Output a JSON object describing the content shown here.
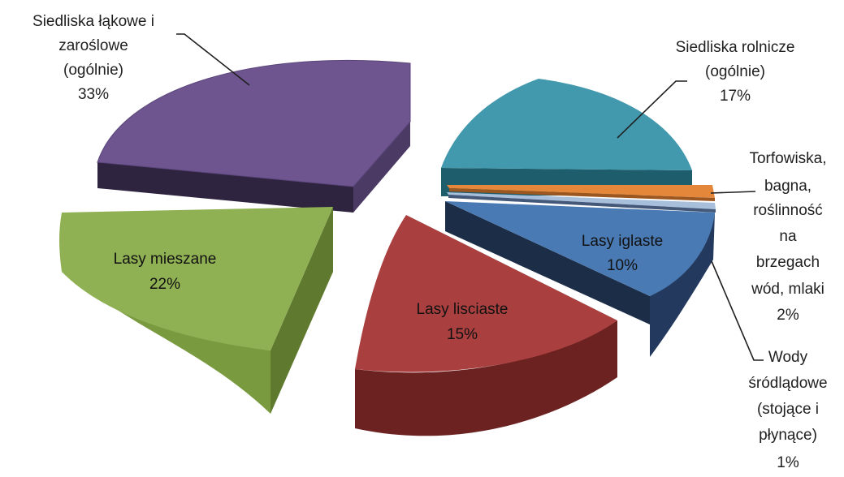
{
  "chart_data": {
    "type": "pie",
    "style": "3d-exploded",
    "slices": [
      {
        "key": "siedliska_lakowe",
        "lines": [
          "Siedliska łąkowe i",
          "zaroślowe",
          "(ogólnie)"
        ],
        "pct_text": "33%",
        "value": 33,
        "color": "#7b5e98"
      },
      {
        "key": "siedliska_rolnicze",
        "lines": [
          "Siedliska rolnicze",
          "(ogólnie)"
        ],
        "pct_text": "17%",
        "value": 17,
        "color": "#4298ad"
      },
      {
        "key": "torfowiska",
        "lines": [
          "Torfowiska,",
          "bagna,",
          "roślinność",
          "na",
          "brzegach",
          "wód, mlaki"
        ],
        "pct_text": "2%",
        "value": 2,
        "color": "#e5873a"
      },
      {
        "key": "wody",
        "lines": [
          "Wody",
          "śródlądowe",
          "(stojące i",
          "płynące)"
        ],
        "pct_text": "1%",
        "value": 1,
        "color": "#9db5d6"
      },
      {
        "key": "lasy_iglaste",
        "lines": [
          "Lasy iglaste"
        ],
        "pct_text": "10%",
        "value": 10,
        "color": "#4a7ab3"
      },
      {
        "key": "lasy_lisciaste",
        "lines": [
          "Lasy lisciaste"
        ],
        "pct_text": "15%",
        "value": 15,
        "color": "#b74a48"
      },
      {
        "key": "lasy_mieszane",
        "lines": [
          "Lasy mieszane"
        ],
        "pct_text": "22%",
        "value": 22,
        "color": "#94b456"
      }
    ]
  }
}
